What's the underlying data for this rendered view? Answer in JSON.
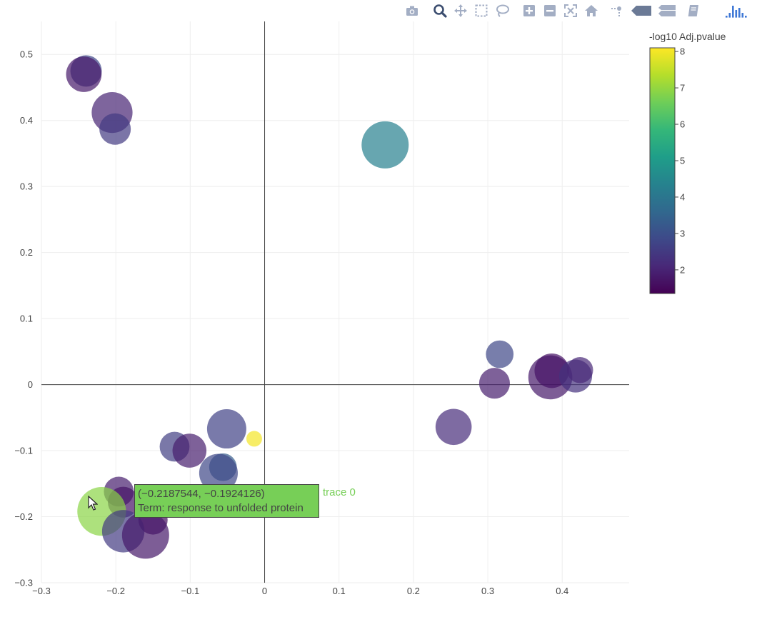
{
  "modebar": {
    "buttons": [
      {
        "name": "camera-icon",
        "title": "Download plot as a png"
      },
      {
        "name": "zoom-icon",
        "title": "Zoom"
      },
      {
        "name": "pan-icon",
        "title": "Pan"
      },
      {
        "name": "box-select-icon",
        "title": "Box Select"
      },
      {
        "name": "lasso-select-icon",
        "title": "Lasso Select"
      },
      {
        "name": "zoom-in-icon",
        "title": "Zoom in"
      },
      {
        "name": "zoom-out-icon",
        "title": "Zoom out"
      },
      {
        "name": "autoscale-icon",
        "title": "Autoscale"
      },
      {
        "name": "home-icon",
        "title": "Reset axes"
      },
      {
        "name": "spike-lines-icon",
        "title": "Toggle Spike Lines"
      },
      {
        "name": "hover-closest-icon",
        "title": "Show closest data on hover"
      },
      {
        "name": "hover-compare-icon",
        "title": "Compare data on hover"
      },
      {
        "name": "edit-book-icon",
        "title": "Edit in Chart Studio"
      },
      {
        "name": "plotly-logo-icon",
        "title": "Produced with Plotly"
      }
    ]
  },
  "chart_data": {
    "type": "scatter",
    "title": "",
    "xlabel": "",
    "ylabel": "",
    "xlim": [
      -0.3,
      0.49
    ],
    "ylim": [
      -0.3,
      0.55
    ],
    "x_ticks": [
      -0.3,
      -0.2,
      -0.1,
      0,
      0.1,
      0.2,
      0.3,
      0.4
    ],
    "x_tick_labels": [
      "−0.3",
      "−0.2",
      "−0.1",
      "0",
      "0.1",
      "0.2",
      "0.3",
      "0.4"
    ],
    "y_ticks": [
      -0.3,
      -0.2,
      -0.1,
      0,
      0.1,
      0.2,
      0.3,
      0.4,
      0.5
    ],
    "y_tick_labels": [
      "−0.3",
      "−0.2",
      "−0.1",
      "0",
      "0.1",
      "0.2",
      "0.3",
      "0.4",
      "0.5"
    ],
    "grid": true,
    "zero_lines": true,
    "colorbar": {
      "title": "-log10 Adj.pvalue",
      "range": [
        1.35,
        8.1
      ],
      "ticks": [
        2,
        3,
        4,
        5,
        6,
        7,
        8
      ],
      "colorscale": [
        "#440154",
        "#482878",
        "#3e4989",
        "#31688e",
        "#26828e",
        "#1f9e89",
        "#35b779",
        "#6ece58",
        "#b5de2b",
        "#fde725"
      ]
    },
    "marker_size_units": "relative",
    "points": [
      {
        "x": -0.24,
        "y": 0.475,
        "c": 2.8,
        "s": 1.0
      },
      {
        "x": -0.243,
        "y": 0.47,
        "c": 1.8,
        "s": 1.13
      },
      {
        "x": -0.205,
        "y": 0.412,
        "c": 2.0,
        "s": 1.3
      },
      {
        "x": -0.201,
        "y": 0.387,
        "c": 2.5,
        "s": 1.0
      },
      {
        "x": 0.162,
        "y": 0.363,
        "c": 4.3,
        "s": 1.5
      },
      {
        "x": 0.316,
        "y": 0.046,
        "c": 2.8,
        "s": 0.88
      },
      {
        "x": 0.309,
        "y": 0.002,
        "c": 1.9,
        "s": 0.98
      },
      {
        "x": 0.384,
        "y": 0.011,
        "c": 1.8,
        "s": 1.4
      },
      {
        "x": 0.386,
        "y": 0.021,
        "c": 1.7,
        "s": 1.1
      },
      {
        "x": 0.418,
        "y": 0.013,
        "c": 2.3,
        "s": 1.05
      },
      {
        "x": 0.424,
        "y": 0.022,
        "c": 2.1,
        "s": 0.83
      },
      {
        "x": 0.254,
        "y": -0.064,
        "c": 2.2,
        "s": 1.15
      },
      {
        "x": -0.051,
        "y": -0.067,
        "c": 2.7,
        "s": 1.25
      },
      {
        "x": -0.014,
        "y": -0.082,
        "c": 8.0,
        "s": 0.5
      },
      {
        "x": -0.121,
        "y": -0.094,
        "c": 2.6,
        "s": 0.95
      },
      {
        "x": -0.101,
        "y": -0.1,
        "c": 1.9,
        "s": 1.08
      },
      {
        "x": -0.056,
        "y": -0.125,
        "c": 3.3,
        "s": 0.88
      },
      {
        "x": -0.062,
        "y": -0.134,
        "c": 2.8,
        "s": 1.23
      },
      {
        "x": -0.092,
        "y": -0.175,
        "c": 1.9,
        "s": 0.78
      },
      {
        "x": -0.196,
        "y": -0.162,
        "c": 1.9,
        "s": 0.95
      },
      {
        "x": -0.19,
        "y": -0.178,
        "c": 1.7,
        "s": 0.98
      },
      {
        "x": -0.219,
        "y": -0.192,
        "c": 6.9,
        "s": 1.55
      },
      {
        "x": -0.15,
        "y": -0.205,
        "c": 1.6,
        "s": 0.93
      },
      {
        "x": -0.19,
        "y": -0.222,
        "c": 2.5,
        "s": 1.35
      },
      {
        "x": -0.16,
        "y": -0.228,
        "c": 1.8,
        "s": 1.5
      }
    ]
  },
  "hover": {
    "coords": "(−0.2187544, −0.1924126)",
    "term": "Term:  response to unfolded protein",
    "trace": "trace 0"
  }
}
